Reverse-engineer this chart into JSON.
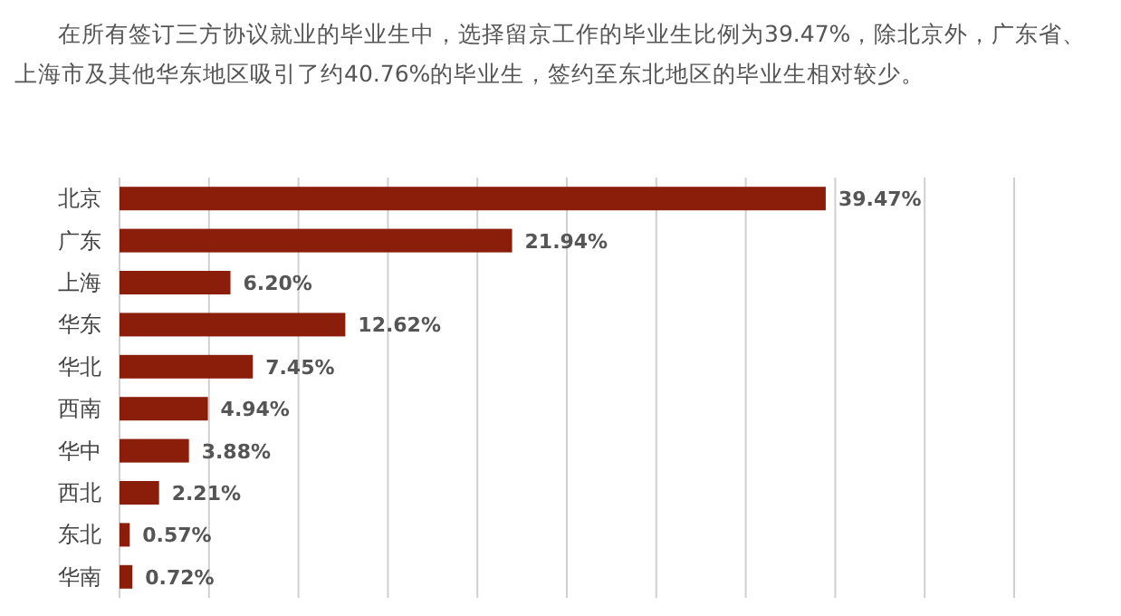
{
  "chart_data": {
    "type": "bar",
    "orientation": "horizontal",
    "title": "在所有签订三方协议就业的毕业生中，选择留京工作的毕业生比例为39.47%，除北京外，广东省、上海市及其他华东地区吸引了约40.76%的毕业生，签约至东北地区的毕业生相对较少。",
    "categories": [
      "北京",
      "广东",
      "上海",
      "华东",
      "华北",
      "西南",
      "华中",
      "西北",
      "东北",
      "华南"
    ],
    "values": [
      39.47,
      21.94,
      6.2,
      12.62,
      7.45,
      4.94,
      3.88,
      2.21,
      0.57,
      0.72
    ],
    "value_labels": [
      "39.47%",
      "21.94%",
      "6.20%",
      "12.62%",
      "7.45%",
      "4.94%",
      "3.88%",
      "2.21%",
      "0.57%",
      "0.72%"
    ],
    "color": "#8b1e0a",
    "xlim": [
      0,
      50
    ],
    "xticks": [
      {
        "value": 0,
        "label": null
      },
      {
        "value": 5,
        "label": null
      },
      {
        "value": 10,
        "label": null
      },
      {
        "value": 15,
        "label": null
      },
      {
        "value": 20,
        "label": null
      },
      {
        "value": 25,
        "label": null
      },
      {
        "value": 30,
        "label": null
      },
      {
        "value": 35,
        "label": null
      },
      {
        "value": 40,
        "label": null
      },
      {
        "value": 45,
        "label": null
      },
      {
        "value": 50,
        "label": null
      }
    ],
    "grid": "x",
    "tick_labels": "y"
  }
}
